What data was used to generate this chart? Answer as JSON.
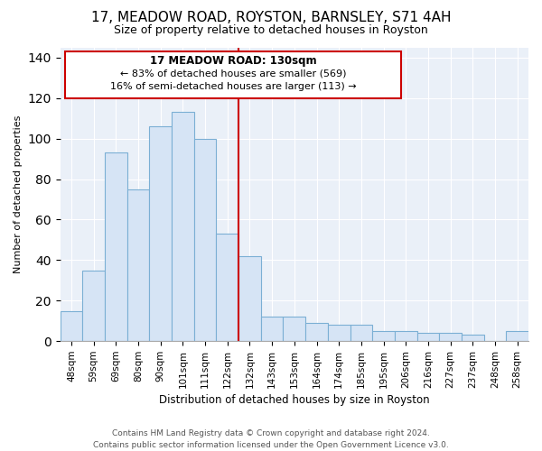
{
  "title": "17, MEADOW ROAD, ROYSTON, BARNSLEY, S71 4AH",
  "subtitle": "Size of property relative to detached houses in Royston",
  "xlabel": "Distribution of detached houses by size in Royston",
  "ylabel": "Number of detached properties",
  "bar_labels": [
    "48sqm",
    "59sqm",
    "69sqm",
    "80sqm",
    "90sqm",
    "101sqm",
    "111sqm",
    "122sqm",
    "132sqm",
    "143sqm",
    "153sqm",
    "164sqm",
    "174sqm",
    "185sqm",
    "195sqm",
    "206sqm",
    "216sqm",
    "227sqm",
    "237sqm",
    "248sqm",
    "258sqm"
  ],
  "bar_values": [
    15,
    35,
    93,
    75,
    106,
    113,
    100,
    53,
    42,
    12,
    12,
    9,
    8,
    8,
    5,
    5,
    4,
    4,
    3,
    0,
    5
  ],
  "bar_color": "#d6e4f5",
  "bar_edge_color": "#7bafd4",
  "property_line_label": "17 MEADOW ROAD: 130sqm",
  "annotation_line1": "← 83% of detached houses are smaller (569)",
  "annotation_line2": "16% of semi-detached houses are larger (113) →",
  "ylim": [
    0,
    145
  ],
  "yticks": [
    0,
    20,
    40,
    60,
    80,
    100,
    120,
    140
  ],
  "line_color": "#cc0000",
  "box_edge_color": "#cc0000",
  "plot_bg_color": "#eaf0f8",
  "footer_line1": "Contains HM Land Registry data © Crown copyright and database right 2024.",
  "footer_line2": "Contains public sector information licensed under the Open Government Licence v3.0.",
  "title_fontsize": 11,
  "subtitle_fontsize": 9,
  "annotation_fontsize": 8.5,
  "ylabel_fontsize": 8,
  "xlabel_fontsize": 8.5,
  "footer_fontsize": 6.5
}
